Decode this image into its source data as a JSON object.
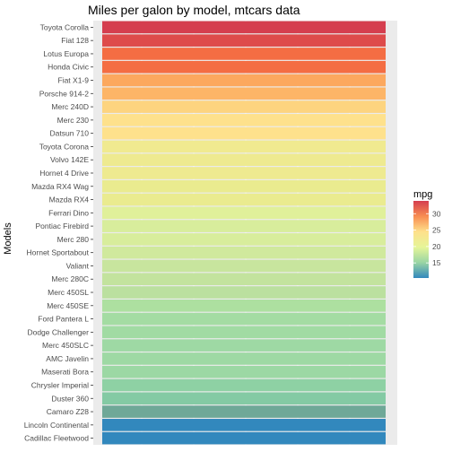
{
  "chart_data": {
    "type": "bar",
    "orientation": "horizontal",
    "title": "Miles per galon  by model, mtcars data",
    "xlabel": "",
    "ylabel": "Models",
    "grid": true,
    "legend_position": "right",
    "legend": {
      "title": "mpg",
      "ticks": [
        15,
        20,
        25,
        30
      ],
      "range": [
        10.4,
        33.9
      ],
      "scale": "RdYlBu (Spectral-like) continuous, low = blue, high = red"
    },
    "categories": [
      "Toyota Corolla",
      "Fiat 128",
      "Lotus Europa",
      "Honda Civic",
      "Fiat X1-9",
      "Porsche 914-2",
      "Merc 240D",
      "Merc 230",
      "Datsun 710",
      "Toyota Corona",
      "Volvo 142E",
      "Hornet 4 Drive",
      "Mazda RX4 Wag",
      "Mazda RX4",
      "Ferrari Dino",
      "Pontiac Firebird",
      "Merc 280",
      "Hornet Sportabout",
      "Valiant",
      "Merc 280C",
      "Merc 450SL",
      "Merc 450SE",
      "Ford Pantera L",
      "Dodge Challenger",
      "Merc 450SLC",
      "AMC Javelin",
      "Maserati Bora",
      "Chrysler Imperial",
      "Duster 360",
      "Camaro Z28",
      "Lincoln Continental",
      "Cadillac Fleetwood"
    ],
    "values": [
      33.9,
      32.4,
      30.4,
      30.4,
      27.3,
      26.0,
      24.4,
      22.8,
      22.8,
      21.5,
      21.4,
      21.4,
      21.0,
      21.0,
      19.7,
      19.2,
      19.2,
      18.7,
      18.1,
      17.8,
      17.3,
      16.4,
      15.8,
      15.5,
      15.2,
      15.2,
      15.0,
      14.7,
      14.3,
      13.3,
      10.4,
      10.4
    ],
    "colors": [
      "#d53e4f",
      "#de4b4b",
      "#f46d43",
      "#f46d43",
      "#fca85e",
      "#fdb567",
      "#fdd47f",
      "#fee18c",
      "#fee18c",
      "#f0ea90",
      "#eeea90",
      "#eeea90",
      "#eaeb8f",
      "#eaeb8f",
      "#e0f09a",
      "#d8ed9c",
      "#d8ed9c",
      "#d0e99d",
      "#c8e59e",
      "#c3e39e",
      "#bbe09f",
      "#ade0a0",
      "#a4dca3",
      "#a1dba3",
      "#9ed9a4",
      "#9ed9a4",
      "#9cd8a4",
      "#8ed1a4",
      "#84caa4",
      "#6fa898",
      "#3288bd",
      "#3288bd"
    ]
  }
}
